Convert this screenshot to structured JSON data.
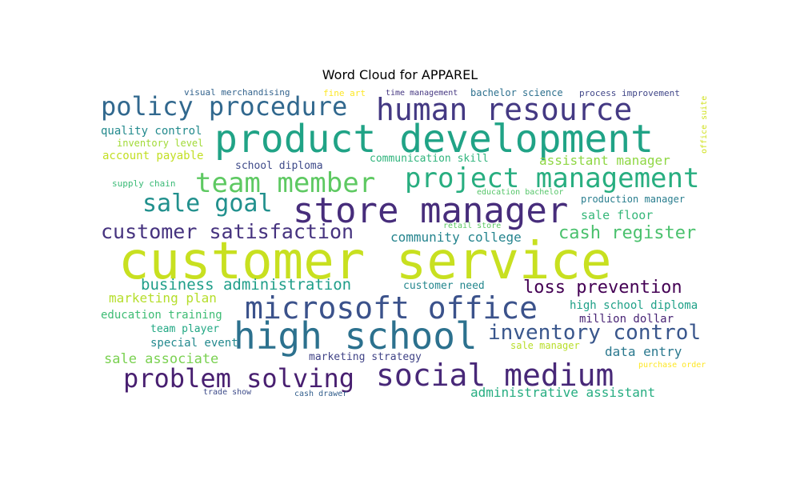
{
  "chart_data": {
    "type": "wordcloud",
    "title": "Word Cloud for APPAREL",
    "words": [
      {
        "text": "customer service",
        "weight": 1.0,
        "color": "#c8e020"
      },
      {
        "text": "product development",
        "weight": 0.72,
        "color": "#20a386"
      },
      {
        "text": "store manager",
        "weight": 0.64,
        "color": "#472d7b"
      },
      {
        "text": "high school",
        "weight": 0.66,
        "color": "#2c718e"
      },
      {
        "text": "microsoft office",
        "weight": 0.58,
        "color": "#3b528b"
      },
      {
        "text": "social medium",
        "weight": 0.58,
        "color": "#482878"
      },
      {
        "text": "human resource",
        "weight": 0.56,
        "color": "#443983"
      },
      {
        "text": "project management",
        "weight": 0.52,
        "color": "#28ae80"
      },
      {
        "text": "team member",
        "weight": 0.5,
        "color": "#5ec962"
      },
      {
        "text": "policy procedure",
        "weight": 0.46,
        "color": "#31688e"
      },
      {
        "text": "problem solving",
        "weight": 0.46,
        "color": "#481f70"
      },
      {
        "text": "sale goal",
        "weight": 0.42,
        "color": "#21908d"
      },
      {
        "text": "inventory control",
        "weight": 0.38,
        "color": "#39568c"
      },
      {
        "text": "customer satisfaction",
        "weight": 0.36,
        "color": "#46337f"
      },
      {
        "text": "cash register",
        "weight": 0.32,
        "color": "#4ac16d"
      },
      {
        "text": "loss prevention",
        "weight": 0.32,
        "color": "#440154"
      },
      {
        "text": "business administration",
        "weight": 0.28,
        "color": "#1f9e89"
      },
      {
        "text": "community college",
        "weight": 0.22,
        "color": "#25848e"
      },
      {
        "text": "administrative assistant",
        "weight": 0.22,
        "color": "#26ad81"
      },
      {
        "text": "assistant manager",
        "weight": 0.22,
        "color": "#8fd744"
      },
      {
        "text": "marketing plan",
        "weight": 0.22,
        "color": "#b5de2b"
      },
      {
        "text": "sale associate",
        "weight": 0.22,
        "color": "#7ad151"
      },
      {
        "text": "data entry",
        "weight": 0.2,
        "color": "#2a788e"
      },
      {
        "text": "sale floor",
        "weight": 0.2,
        "color": "#35b779"
      },
      {
        "text": "quality control",
        "weight": 0.18,
        "color": "#238a8d"
      },
      {
        "text": "education training",
        "weight": 0.18,
        "color": "#3dbc74"
      },
      {
        "text": "high school diploma",
        "weight": 0.18,
        "color": "#1fa188"
      },
      {
        "text": "million dollar",
        "weight": 0.18,
        "color": "#482475"
      },
      {
        "text": "special event",
        "weight": 0.18,
        "color": "#23898e"
      },
      {
        "text": "account payable",
        "weight": 0.18,
        "color": "#c2df23"
      },
      {
        "text": "school diploma",
        "weight": 0.16,
        "color": "#3e4a89"
      },
      {
        "text": "communication skill",
        "weight": 0.16,
        "color": "#2fb47c"
      },
      {
        "text": "inventory level",
        "weight": 0.16,
        "color": "#a2da37"
      },
      {
        "text": "team player",
        "weight": 0.16,
        "color": "#22a884"
      },
      {
        "text": "marketing strategy",
        "weight": 0.16,
        "color": "#414487"
      },
      {
        "text": "production manager",
        "weight": 0.16,
        "color": "#287d8e"
      },
      {
        "text": "customer need",
        "weight": 0.16,
        "color": "#24878e"
      },
      {
        "text": "sale manager",
        "weight": 0.15,
        "color": "#b8de29"
      },
      {
        "text": "process improvement",
        "weight": 0.14,
        "color": "#404688"
      },
      {
        "text": "bachelor science",
        "weight": 0.14,
        "color": "#2d708e"
      },
      {
        "text": "visual merchandising",
        "weight": 0.14,
        "color": "#33638d"
      },
      {
        "text": "time management",
        "weight": 0.13,
        "color": "#453781"
      },
      {
        "text": "supply chain",
        "weight": 0.13,
        "color": "#3aba76"
      },
      {
        "text": "fine art",
        "weight": 0.13,
        "color": "#fde725"
      },
      {
        "text": "education bachelor",
        "weight": 0.12,
        "color": "#54c568"
      },
      {
        "text": "office suite",
        "weight": 0.12,
        "color": "#d0e11c"
      },
      {
        "text": "purchase order",
        "weight": 0.12,
        "color": "#fde725"
      },
      {
        "text": "trade show",
        "weight": 0.12,
        "color": "#3e4c8a"
      },
      {
        "text": "cash drawer",
        "weight": 0.12,
        "color": "#34608d"
      },
      {
        "text": "retail store",
        "weight": 0.12,
        "color": "#5cc863"
      }
    ]
  }
}
